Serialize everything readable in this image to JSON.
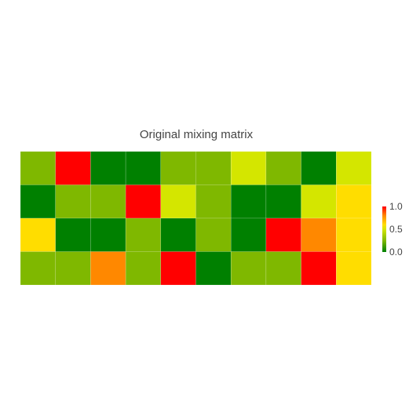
{
  "chart_data": {
    "type": "heatmap",
    "title": "Original mixing matrix",
    "rows": 4,
    "cols": 10,
    "values": [
      [
        0.25,
        1.0,
        0.0,
        0.0,
        0.25,
        0.25,
        0.5,
        0.25,
        0.0,
        0.5
      ],
      [
        0.0,
        0.25,
        0.25,
        1.0,
        0.5,
        0.25,
        0.0,
        0.0,
        0.5,
        0.6
      ],
      [
        0.6,
        0.0,
        0.0,
        0.25,
        0.0,
        0.25,
        0.0,
        1.0,
        0.8,
        0.6
      ],
      [
        0.25,
        0.25,
        0.8,
        0.25,
        1.0,
        0.0,
        0.25,
        0.25,
        1.0,
        0.6
      ]
    ],
    "zlim": [
      0,
      1
    ],
    "colorscale": [
      [
        0.0,
        "#008000"
      ],
      [
        0.25,
        "#7fb800"
      ],
      [
        0.5,
        "#d4e600"
      ],
      [
        0.6,
        "#ffdd00"
      ],
      [
        0.8,
        "#ff8800"
      ],
      [
        1.0,
        "#ff0000"
      ]
    ],
    "colorbar": {
      "tick_values": [
        0.0,
        0.5,
        1.0
      ],
      "tick_labels": [
        "0.0",
        "0.5",
        "1.0"
      ]
    },
    "grid": false
  }
}
